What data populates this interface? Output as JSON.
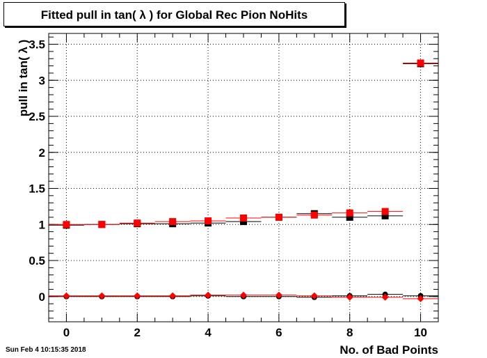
{
  "title": "Fitted pull in tan( λ ) for Global Rec Pion NoHits",
  "timestamp": "Sun Feb  4 10:15:35 2018",
  "chart_data": {
    "type": "scatter",
    "title": "Fitted pull in tan( λ ) for Global Rec Pion NoHits",
    "xlabel": "No. of Bad Points",
    "ylabel": "pull in tan( λ )",
    "xlim": [
      -0.5,
      10.5
    ],
    "ylim": [
      -0.35,
      3.65
    ],
    "x_ticks": [
      "0",
      "2",
      "4",
      "6",
      "8",
      "10"
    ],
    "y_ticks": [
      "0",
      "0.5",
      "1",
      "1.5",
      "2",
      "2.5",
      "3",
      "3.5"
    ],
    "grid": true,
    "series": [
      {
        "marker": "square",
        "color": "#000000",
        "x": [
          0,
          1,
          2,
          3,
          4,
          5,
          6,
          7,
          8,
          9,
          10
        ],
        "y": [
          0.99,
          1.0,
          1.01,
          1.01,
          1.02,
          1.04,
          1.1,
          1.15,
          1.1,
          1.12,
          3.23
        ]
      },
      {
        "marker": "square",
        "color": "#ff0000",
        "x": [
          0,
          1,
          2,
          3,
          4,
          5,
          6,
          7,
          8,
          9,
          10
        ],
        "y": [
          1.0,
          1.0,
          1.02,
          1.04,
          1.05,
          1.09,
          1.1,
          1.13,
          1.16,
          1.18,
          3.24
        ]
      },
      {
        "marker": "circle",
        "color": "#000000",
        "x": [
          0,
          1,
          2,
          3,
          4,
          5,
          6,
          7,
          8,
          9,
          10
        ],
        "y": [
          0.0,
          0.0,
          0.0,
          0.0,
          0.01,
          0.0,
          0.0,
          -0.01,
          0.01,
          0.03,
          0.01
        ]
      },
      {
        "marker": "diamond",
        "color": "#ff0000",
        "x": [
          0,
          1,
          2,
          3,
          4,
          5,
          6,
          7,
          8,
          9,
          10
        ],
        "y": [
          0.01,
          0.01,
          0.01,
          0.01,
          0.02,
          0.02,
          0.02,
          0.01,
          -0.01,
          -0.01,
          -0.03
        ]
      }
    ]
  }
}
